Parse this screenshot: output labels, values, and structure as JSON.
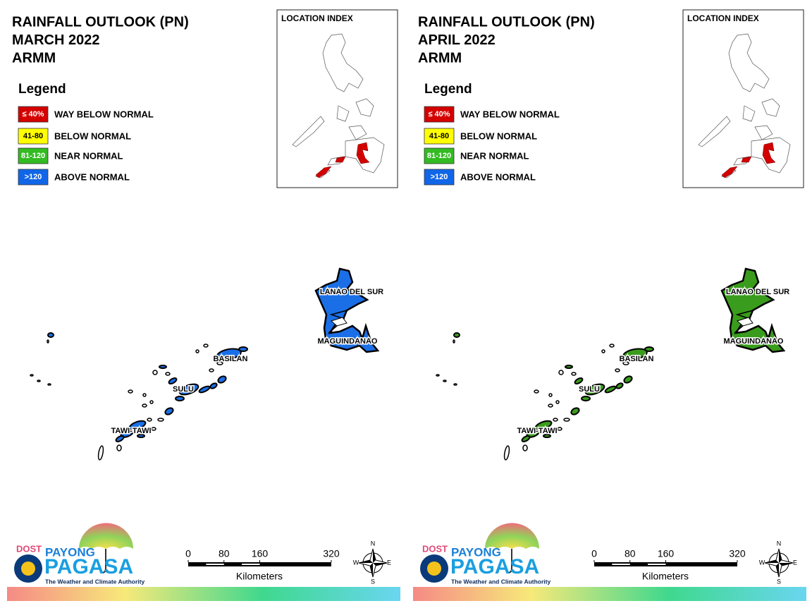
{
  "panels": [
    {
      "title": [
        "RAINFALL OUTLOOK (PN)",
        "MARCH 2022",
        "ARMM"
      ],
      "legend_title": "Legend",
      "legend": [
        {
          "swatch": "≤ 40%",
          "label": "WAY BELOW NORMAL",
          "color": "#d40000"
        },
        {
          "swatch": "41-80",
          "label": "BELOW NORMAL",
          "color": "#ffff00"
        },
        {
          "swatch": "81-120",
          "label": "NEAR NORMAL",
          "color": "#33bb22"
        },
        {
          "swatch": ">120",
          "label": "ABOVE NORMAL",
          "color": "#1166e8"
        }
      ],
      "index_title": "LOCATION INDEX",
      "provinces": [
        "LANAO DEL SUR",
        "MAGUINDANAO",
        "BASILAN",
        "SULU",
        "TAWI-TAWI"
      ],
      "map_color": "#1a6fe6",
      "scale_ticks": [
        0,
        80,
        160,
        320
      ],
      "scale_unit": "Kilometers",
      "compass": [
        "N",
        "E",
        "S",
        "W"
      ],
      "logo": {
        "dost": "DOST",
        "payong": "PAYONG",
        "pagasa": "PAGASA",
        "tagline": "The Weather and Climate Authority"
      }
    },
    {
      "title": [
        "RAINFALL OUTLOOK (PN)",
        "APRIL 2022",
        "ARMM"
      ],
      "legend_title": "Legend",
      "legend": [
        {
          "swatch": "≤ 40%",
          "label": "WAY BELOW NORMAL",
          "color": "#d40000"
        },
        {
          "swatch": "41-80",
          "label": "BELOW NORMAL",
          "color": "#ffff00"
        },
        {
          "swatch": "81-120",
          "label": "NEAR NORMAL",
          "color": "#33bb22"
        },
        {
          "swatch": ">120",
          "label": "ABOVE NORMAL",
          "color": "#1166e8"
        }
      ],
      "index_title": "LOCATION INDEX",
      "provinces": [
        "LANAO DEL SUR",
        "MAGUINDANAO",
        "BASILAN",
        "SULU",
        "TAWI-TAWI"
      ],
      "map_color": "#3a9c1c",
      "scale_ticks": [
        0,
        80,
        160,
        320
      ],
      "scale_unit": "Kilometers",
      "compass": [
        "N",
        "E",
        "S",
        "W"
      ],
      "logo": {
        "dost": "DOST",
        "payong": "PAYONG",
        "pagasa": "PAGASA",
        "tagline": "The Weather and Climate Authority"
      }
    }
  ]
}
